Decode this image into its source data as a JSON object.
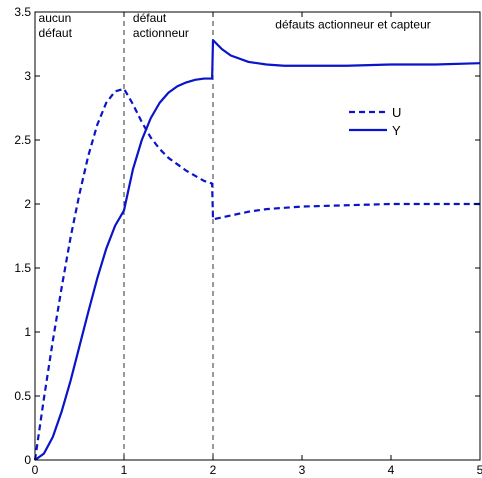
{
  "chart_data": {
    "type": "line",
    "title": "",
    "xlabel": "",
    "ylabel": "",
    "xlim": [
      0,
      5
    ],
    "ylim": [
      0,
      3.5
    ],
    "xticks": [
      0,
      1,
      2,
      3,
      4,
      5
    ],
    "yticks": [
      0,
      0.5,
      1,
      1.5,
      2,
      2.5,
      3,
      3.5
    ],
    "xtick_labels": [
      "0",
      "1",
      "2",
      "3",
      "4",
      "5"
    ],
    "ytick_labels": [
      "0",
      "0.5",
      "1",
      "1.5",
      "2",
      "2.5",
      "3",
      "3.5"
    ],
    "grid": false,
    "legend_position": "upper-right",
    "line_color": "#0a14c8",
    "vlines": [
      1,
      2
    ],
    "annotations": [
      {
        "lines": [
          "aucun",
          "défaut"
        ],
        "x": 0.04,
        "y": 3.42
      },
      {
        "lines": [
          "défaut",
          "actionneur"
        ],
        "x": 1.1,
        "y": 3.42
      },
      {
        "lines": [
          "défauts actionneur et capteur"
        ],
        "x": 2.7,
        "y": 3.37
      }
    ],
    "series": [
      {
        "name": "U",
        "style": "dashed",
        "points": [
          [
            0,
            0
          ],
          [
            0.1,
            0.48
          ],
          [
            0.2,
            0.93
          ],
          [
            0.3,
            1.35
          ],
          [
            0.4,
            1.74
          ],
          [
            0.5,
            2.08
          ],
          [
            0.6,
            2.38
          ],
          [
            0.7,
            2.62
          ],
          [
            0.8,
            2.79
          ],
          [
            0.9,
            2.88
          ],
          [
            1.0,
            2.9
          ],
          [
            1.1,
            2.78
          ],
          [
            1.2,
            2.64
          ],
          [
            1.3,
            2.52
          ],
          [
            1.4,
            2.43
          ],
          [
            1.5,
            2.36
          ],
          [
            1.6,
            2.31
          ],
          [
            1.7,
            2.26
          ],
          [
            1.8,
            2.22
          ],
          [
            1.9,
            2.18
          ],
          [
            1.99,
            2.16
          ],
          [
            2.0,
            1.88
          ],
          [
            2.2,
            1.91
          ],
          [
            2.4,
            1.94
          ],
          [
            2.6,
            1.96
          ],
          [
            2.8,
            1.97
          ],
          [
            3.0,
            1.98
          ],
          [
            3.5,
            1.99
          ],
          [
            4.0,
            2.0
          ],
          [
            4.5,
            2.0
          ],
          [
            5.0,
            2.0
          ]
        ]
      },
      {
        "name": "Y",
        "style": "solid",
        "points": [
          [
            0,
            0
          ],
          [
            0.1,
            0.05
          ],
          [
            0.2,
            0.18
          ],
          [
            0.3,
            0.38
          ],
          [
            0.4,
            0.62
          ],
          [
            0.5,
            0.89
          ],
          [
            0.6,
            1.16
          ],
          [
            0.7,
            1.42
          ],
          [
            0.8,
            1.65
          ],
          [
            0.9,
            1.83
          ],
          [
            1.0,
            1.95
          ],
          [
            1.1,
            2.27
          ],
          [
            1.2,
            2.5
          ],
          [
            1.3,
            2.67
          ],
          [
            1.4,
            2.79
          ],
          [
            1.5,
            2.87
          ],
          [
            1.6,
            2.92
          ],
          [
            1.7,
            2.95
          ],
          [
            1.8,
            2.97
          ],
          [
            1.9,
            2.98
          ],
          [
            1.99,
            2.98
          ],
          [
            2.0,
            3.28
          ],
          [
            2.1,
            3.21
          ],
          [
            2.2,
            3.16
          ],
          [
            2.4,
            3.11
          ],
          [
            2.6,
            3.09
          ],
          [
            2.8,
            3.08
          ],
          [
            3.0,
            3.08
          ],
          [
            3.5,
            3.08
          ],
          [
            4.0,
            3.09
          ],
          [
            4.5,
            3.09
          ],
          [
            5.0,
            3.1
          ]
        ]
      }
    ]
  }
}
